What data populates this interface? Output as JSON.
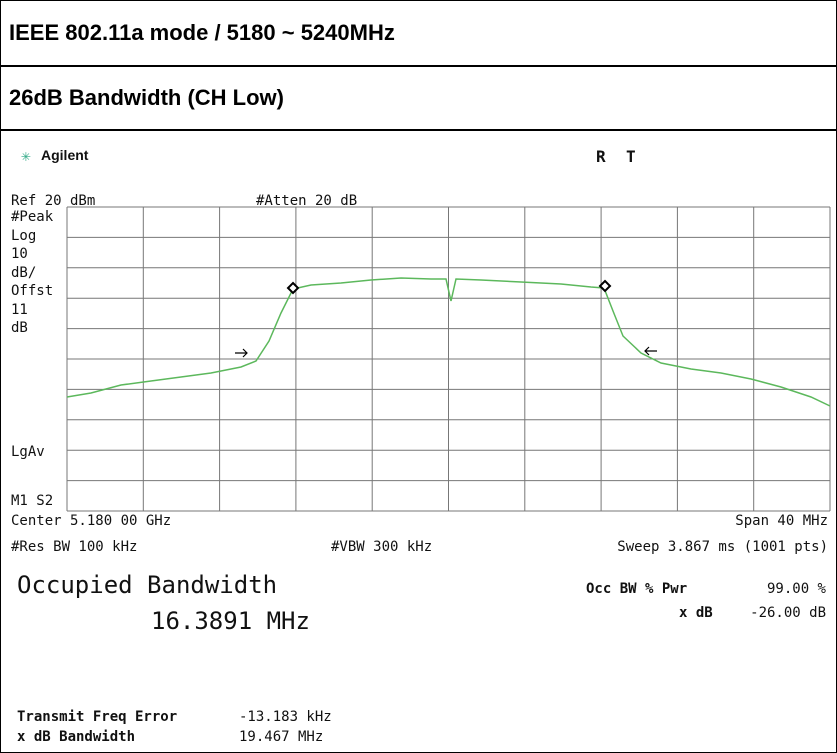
{
  "header": {
    "title": "IEEE 802.11a mode / 5180 ~ 5240MHz",
    "subtitle": "26dB Bandwidth (CH Low)"
  },
  "analyzer": {
    "brand": "Agilent",
    "status": [
      "R",
      "T"
    ],
    "ref": "Ref 20 dBm",
    "atten": "#Atten 20 dB",
    "left_labels": [
      "#Peak",
      "Log",
      "10",
      "dB/",
      "Offst",
      "11",
      "dB"
    ],
    "lgav": "LgAv",
    "m1s2": "M1 S2",
    "center": "Center 5.180 00 GHz",
    "span": "Span 40 MHz",
    "rbw": "#Res BW 100 kHz",
    "vbw": "#VBW 300 kHz",
    "sweep": "Sweep 3.867 ms (1001 pts)",
    "occ_title": "Occupied Bandwidth",
    "occ_value": "16.3891 MHz",
    "occ_pwr_label": "Occ BW % Pwr",
    "occ_pwr_value": "99.00 %",
    "xdb_label": "x dB",
    "xdb_value": "-26.00 dB",
    "freq_err_label": "Transmit Freq Error",
    "freq_err_value": "-13.183 kHz",
    "xdb_bw_label": "x dB Bandwidth",
    "xdb_bw_value": "19.467 MHz"
  }
}
